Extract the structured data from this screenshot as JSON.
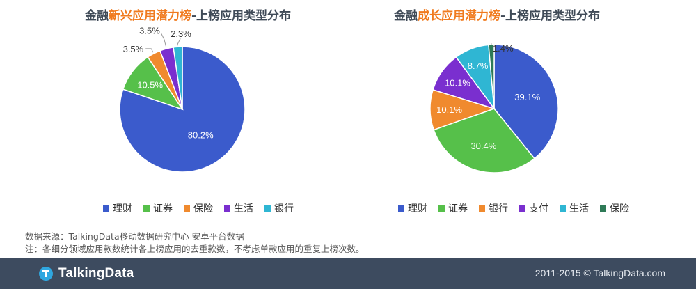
{
  "chart_data": [
    {
      "type": "pie",
      "title": {
        "prefix": "金融",
        "highlight": "新兴应用潜力榜",
        "suffix": "-上榜应用类型分布"
      },
      "slices": [
        {
          "name": "理财",
          "value": 80.2,
          "label": "80.2%",
          "color": "#3b5bcc"
        },
        {
          "name": "证券",
          "value": 10.5,
          "label": "10.5%",
          "color": "#56c04a"
        },
        {
          "name": "保险",
          "value": 3.5,
          "label": "3.5%",
          "color": "#f08a2e"
        },
        {
          "name": "生活",
          "value": 3.5,
          "label": "3.5%",
          "color": "#7a2fcf"
        },
        {
          "name": "银行",
          "value": 2.3,
          "label": "2.3%",
          "color": "#2fb6d3"
        }
      ],
      "legend_position": "bottom"
    },
    {
      "type": "pie",
      "title": {
        "prefix": "金融",
        "highlight": "成长应用潜力榜",
        "suffix": "-上榜应用类型分布"
      },
      "slices": [
        {
          "name": "理财",
          "value": 39.1,
          "label": "39.1%",
          "color": "#3b5bcc"
        },
        {
          "name": "证券",
          "value": 30.4,
          "label": "30.4%",
          "color": "#56c04a"
        },
        {
          "name": "银行",
          "value": 10.1,
          "label": "10.1%",
          "color": "#f08a2e"
        },
        {
          "name": "支付",
          "value": 10.1,
          "label": "10.1%",
          "color": "#7a2fcf"
        },
        {
          "name": "生活",
          "value": 8.7,
          "label": "8.7%",
          "color": "#2fb6d3"
        },
        {
          "name": "保险",
          "value": 1.4,
          "label": "1.4%",
          "color": "#2e7a57"
        }
      ],
      "legend_position": "bottom"
    }
  ],
  "notes": {
    "source": "数据来源：TalkingData移动数据研究中心   安卓平台数据",
    "note": "注：各细分领域应用款数统计各上榜应用的去重款数，不考虑单款应用的重复上榜次数。"
  },
  "footer": {
    "logo_text": "TalkingData",
    "copyright": "2011-2015 © TalkingData.com",
    "background": "#3d4b5f"
  }
}
